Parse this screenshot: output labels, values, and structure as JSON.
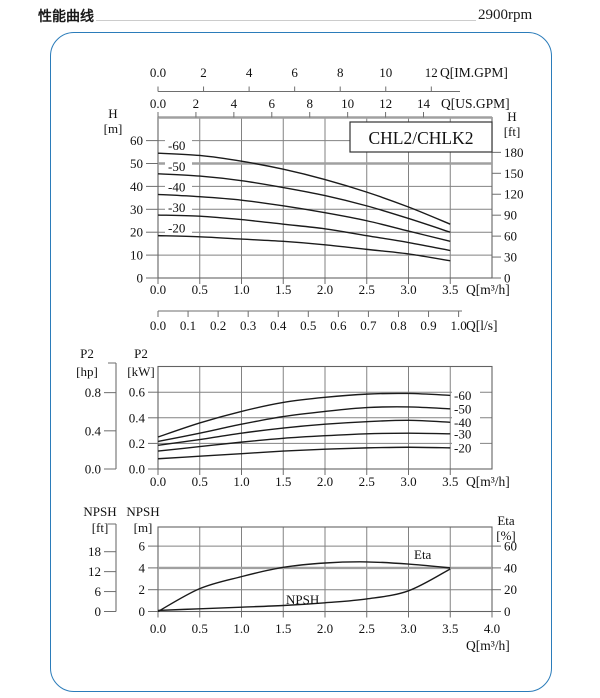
{
  "header": {
    "title": "性能曲线",
    "rpm": "2900rpm"
  },
  "model_box_label": "CHL2/CHLK2",
  "chart_data": [
    {
      "id": "head",
      "type": "line",
      "title": "CHL2/CHLK2",
      "x": [
        0,
        0.5,
        1.0,
        1.5,
        2.0,
        2.5,
        3.0,
        3.5
      ],
      "x_unit": "m³/h",
      "xlim": [
        0,
        4
      ],
      "ylim_m": [
        0,
        70
      ],
      "grid": true,
      "reference_line_m": 50,
      "legend_position": "inline-left",
      "series": [
        {
          "name": "-60",
          "values": [
            54.5,
            53.5,
            51,
            47.5,
            43,
            37.5,
            31,
            23.5
          ]
        },
        {
          "name": "-50",
          "values": [
            45.5,
            44.5,
            42.5,
            39.5,
            36,
            31.5,
            26,
            20
          ]
        },
        {
          "name": "-40",
          "values": [
            36.5,
            35.5,
            34,
            31.5,
            28.5,
            25,
            20.5,
            16
          ]
        },
        {
          "name": "-30",
          "values": [
            27.5,
            27,
            25.5,
            23.5,
            21.5,
            18.5,
            15.5,
            12
          ]
        },
        {
          "name": "-20",
          "values": [
            18.5,
            18,
            17,
            16,
            14.5,
            12.5,
            10.5,
            7.5
          ]
        }
      ],
      "axes": {
        "top_im_gpm": {
          "title": "Q[IM.GPM]",
          "ticks": [
            0,
            2,
            4,
            6,
            8,
            10,
            12
          ],
          "labels": [
            "0.0",
            "2",
            "4",
            "6",
            "8",
            "10",
            "12"
          ]
        },
        "top_us_gpm": {
          "title": "Q[US.GPM]",
          "ticks": [
            0,
            2,
            4,
            6,
            8,
            10,
            12,
            14
          ],
          "labels": [
            "0.0",
            "2",
            "4",
            "6",
            "8",
            "10",
            "12",
            "14"
          ]
        },
        "bottom_m3h": {
          "title": "Q[m³/h]",
          "ticks": [
            0,
            0.5,
            1,
            1.5,
            2,
            2.5,
            3,
            3.5
          ],
          "labels": [
            "0.0",
            "0.5",
            "1.0",
            "1.5",
            "2.0",
            "2.5",
            "3.0",
            "3.5"
          ]
        },
        "bottom_ls": {
          "title": "Q[l/s]",
          "ticks": [
            0,
            0.1,
            0.2,
            0.3,
            0.4,
            0.5,
            0.6,
            0.7,
            0.8,
            0.9,
            1.0
          ],
          "labels": [
            "0.0",
            "0.1",
            "0.2",
            "0.3",
            "0.4",
            "0.5",
            "0.6",
            "0.7",
            "0.8",
            "0.9",
            "1.0"
          ]
        },
        "left_h_m": {
          "title": "H",
          "unit": "[m]",
          "ticks": [
            0,
            10,
            20,
            30,
            40,
            50,
            60
          ],
          "labels": [
            "0",
            "10",
            "20",
            "30",
            "40",
            "50",
            "60"
          ]
        },
        "right_h_ft": {
          "title": "H",
          "unit": "[ft]",
          "ticks": [
            0,
            30,
            60,
            90,
            120,
            150,
            180
          ],
          "labels": [
            "0",
            "30",
            "60",
            "90",
            "120",
            "150",
            "180"
          ]
        }
      }
    },
    {
      "id": "power",
      "type": "line",
      "x": [
        0,
        0.5,
        1.0,
        1.5,
        2.0,
        2.5,
        3.0,
        3.5
      ],
      "x_unit": "m³/h",
      "xlim": [
        0,
        4
      ],
      "ylim_kw": [
        0,
        0.8
      ],
      "grid": true,
      "legend_position": "inline-right",
      "series": [
        {
          "name": "-60",
          "values": [
            0.25,
            0.36,
            0.45,
            0.52,
            0.56,
            0.585,
            0.59,
            0.575
          ]
        },
        {
          "name": "-50",
          "values": [
            0.215,
            0.28,
            0.35,
            0.41,
            0.45,
            0.48,
            0.485,
            0.47
          ]
        },
        {
          "name": "-40",
          "values": [
            0.185,
            0.23,
            0.28,
            0.32,
            0.35,
            0.37,
            0.38,
            0.365
          ]
        },
        {
          "name": "-30",
          "values": [
            0.14,
            0.175,
            0.21,
            0.24,
            0.26,
            0.275,
            0.28,
            0.275
          ]
        },
        {
          "name": "-20",
          "values": [
            0.08,
            0.1,
            0.12,
            0.14,
            0.155,
            0.165,
            0.17,
            0.165
          ]
        }
      ],
      "axes": {
        "left_p2_kw": {
          "title": "P2",
          "unit": "[kW]",
          "ticks": [
            0,
            0.2,
            0.4,
            0.6
          ],
          "labels": [
            "0.0",
            "0.2",
            "0.4",
            "0.6"
          ]
        },
        "far_left_p2_hp": {
          "title": "P2",
          "unit": "[hp]",
          "ticks": [
            0,
            0.4,
            0.8
          ],
          "labels": [
            "0.0",
            "0.4",
            "0.8"
          ]
        },
        "bottom_m3h": {
          "title": "Q[m³/h]",
          "ticks": [
            0,
            0.5,
            1,
            1.5,
            2,
            2.5,
            3,
            3.5
          ],
          "labels": [
            "0.0",
            "0.5",
            "1.0",
            "1.5",
            "2.0",
            "2.5",
            "3.0",
            "3.5"
          ]
        }
      }
    },
    {
      "id": "npsh_eta",
      "type": "line",
      "x": [
        0,
        0.5,
        1.0,
        1.5,
        2.0,
        2.5,
        3.0,
        3.5
      ],
      "x_unit": "m³/h",
      "xlim": [
        0,
        4
      ],
      "ylim_npsh_m": [
        0,
        7.75
      ],
      "ylim_eta_pct": [
        0,
        77.5
      ],
      "grid": true,
      "reference_line_m": 4,
      "series": [
        {
          "name": "Eta",
          "unit": "%",
          "values": [
            0,
            21,
            32,
            40.5,
            44.5,
            45.5,
            43.5,
            40
          ]
        },
        {
          "name": "NPSH",
          "unit": "m",
          "values": [
            0.1,
            0.25,
            0.4,
            0.55,
            0.8,
            1.15,
            1.9,
            3.9
          ]
        }
      ],
      "axes": {
        "left_npsh_m": {
          "title": "NPSH",
          "unit": "[m]",
          "ticks": [
            0,
            2,
            4,
            6
          ],
          "labels": [
            "0",
            "2",
            "4",
            "6"
          ]
        },
        "far_left_npsh_ft": {
          "title": "NPSH",
          "unit": "[ft]",
          "ticks": [
            0,
            6,
            12,
            18
          ],
          "labels": [
            "0",
            "6",
            "12",
            "18"
          ]
        },
        "right_eta_pct": {
          "title": "Eta",
          "unit": "[%]",
          "ticks": [
            0,
            20,
            40,
            60
          ],
          "labels": [
            "0",
            "20",
            "40",
            "60"
          ]
        },
        "bottom_m3h": {
          "title": "Q[m³/h]",
          "ticks": [
            0,
            0.5,
            1,
            1.5,
            2,
            2.5,
            3,
            3.5,
            4
          ],
          "labels": [
            "0.0",
            "0.5",
            "1.0",
            "1.5",
            "2.0",
            "2.5",
            "3.0",
            "3.5",
            "4.0"
          ]
        }
      }
    }
  ]
}
